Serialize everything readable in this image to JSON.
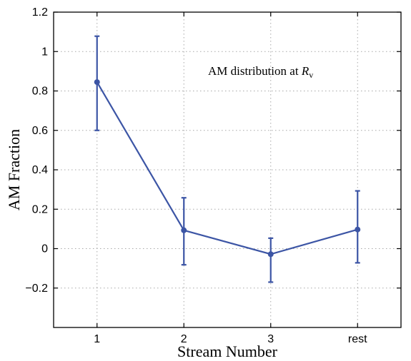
{
  "chart_data": {
    "type": "line",
    "categories": [
      "1",
      "2",
      "3",
      "rest"
    ],
    "x": [
      1,
      2,
      3,
      4
    ],
    "series": [
      {
        "values": [
          0.845,
          0.093,
          -0.028,
          0.097
        ],
        "err_low": [
          0.6,
          -0.082,
          -0.17,
          -0.072
        ],
        "err_high": [
          1.078,
          0.258,
          0.053,
          0.293
        ],
        "color": "#3c55a5"
      }
    ],
    "xlabel": "Stream Number",
    "ylabel": "AM Fraction",
    "ylim": [
      -0.4,
      1.2
    ],
    "xlim": [
      0.5,
      4.5
    ],
    "yticks": [
      -0.2,
      0,
      0.2,
      0.4,
      0.6,
      0.8,
      1,
      1.2
    ],
    "ytick_labels": [
      "−0.2",
      "0",
      "0.2",
      "0.4",
      "0.6",
      "0.8",
      "1",
      "1.2"
    ],
    "annotation": {
      "text": "AM distribution at ",
      "symbol": "R",
      "subscript": "v"
    },
    "grid": true
  }
}
